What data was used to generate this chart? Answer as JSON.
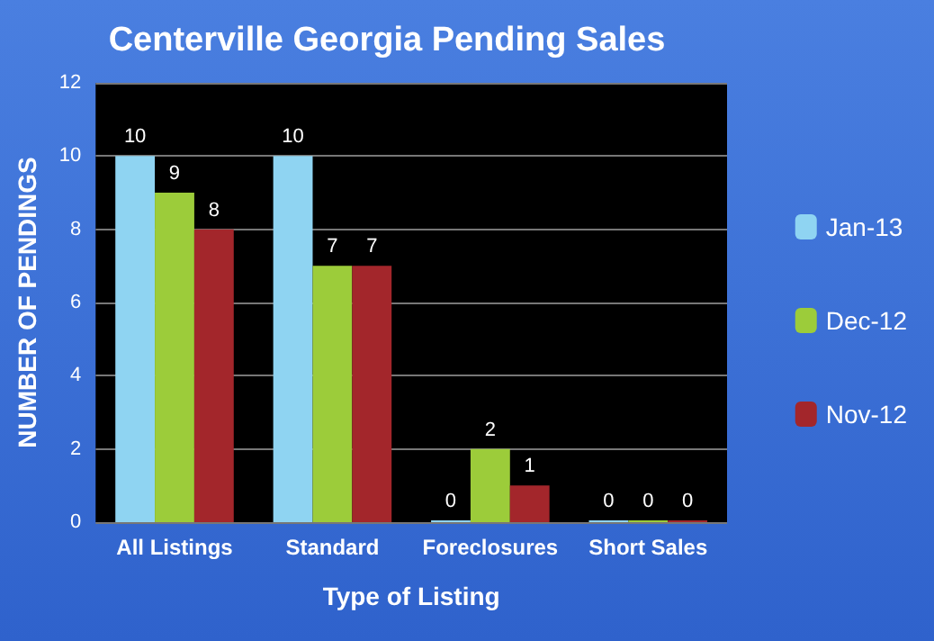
{
  "chart_data": {
    "type": "bar",
    "title": "Centerville Georgia Pending Sales",
    "xlabel": "Type of Listing",
    "ylabel": "NUMBER OF PENDINGS",
    "categories": [
      "All Listings",
      "Standard",
      "Foreclosures",
      "Short Sales"
    ],
    "series": [
      {
        "name": "Jan-13",
        "color": "#8fd4f2",
        "values": [
          10,
          10,
          0,
          0
        ]
      },
      {
        "name": "Dec-12",
        "color": "#9ccc3a",
        "values": [
          9,
          7,
          2,
          0
        ]
      },
      {
        "name": "Nov-12",
        "color": "#a3262b",
        "values": [
          8,
          7,
          1,
          0
        ]
      }
    ],
    "ylim": [
      0,
      12
    ],
    "yticks": [
      0,
      2,
      4,
      6,
      8,
      10,
      12
    ],
    "grid": "y",
    "legend": "right",
    "data_labels": true
  }
}
